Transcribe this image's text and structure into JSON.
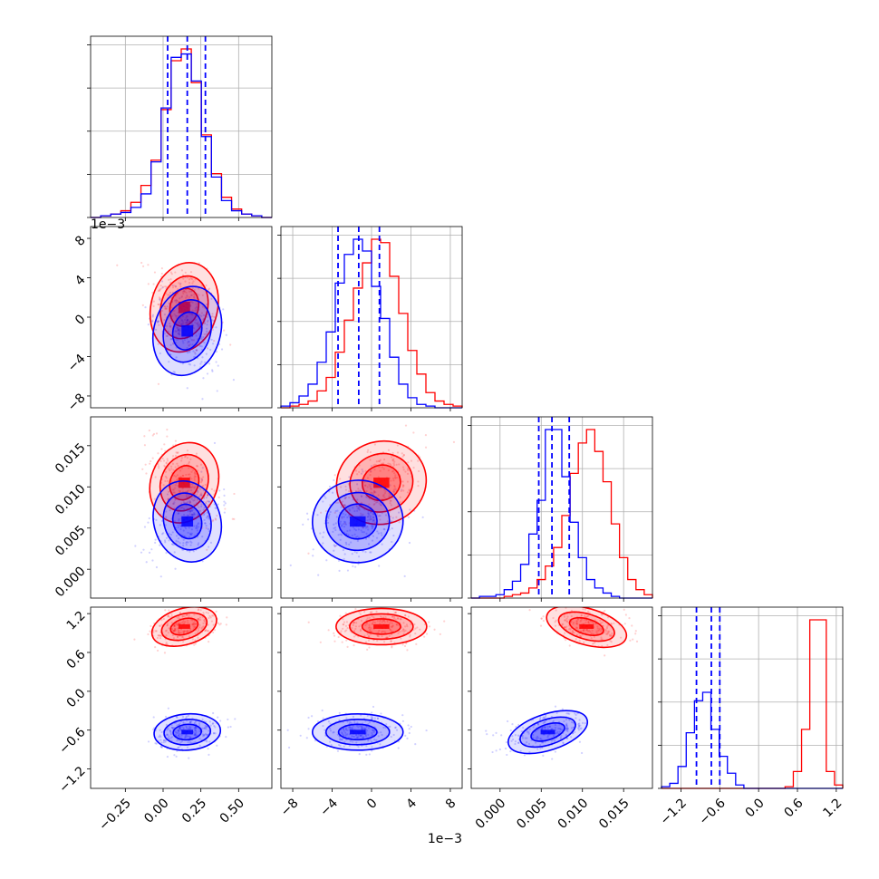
{
  "chart_data": {
    "type": "corner",
    "grid": true,
    "series": [
      {
        "name": "",
        "color": "#ff0000"
      },
      {
        "name": "",
        "color": "#0000ff"
      }
    ],
    "quantile_lines_color": "#0000ff",
    "parameters": [
      {
        "index": 0,
        "ticks": [
          "−0.25",
          "0.00",
          "0.25",
          "0.50"
        ],
        "tick_values": [
          -0.25,
          0.0,
          0.25,
          0.5
        ],
        "range": [
          -0.48,
          0.72
        ],
        "offset_text": "",
        "quantiles": [
          0.03,
          0.16,
          0.28
        ],
        "hist_red": [
          0.0,
          0.01,
          0.02,
          0.04,
          0.09,
          0.19,
          0.34,
          0.64,
          0.93,
          1.0,
          0.8,
          0.49,
          0.26,
          0.12,
          0.05,
          0.02,
          0.01,
          0.0
        ],
        "hist_blue": [
          0.0,
          0.01,
          0.02,
          0.03,
          0.06,
          0.14,
          0.33,
          0.65,
          0.95,
          0.97,
          0.81,
          0.48,
          0.24,
          0.1,
          0.04,
          0.02,
          0.01,
          0.0
        ]
      },
      {
        "index": 1,
        "ticks": [
          "−8",
          "−4",
          "0",
          "4",
          "8"
        ],
        "tick_values": [
          -8,
          -4,
          0,
          4,
          8
        ],
        "range": [
          -9.2,
          9.2
        ],
        "offset_text": "1e−3",
        "quantiles": [
          -3.4,
          -1.3,
          0.8
        ],
        "hist_red": [
          0.0,
          0.01,
          0.02,
          0.04,
          0.1,
          0.18,
          0.33,
          0.52,
          0.71,
          0.86,
          1.0,
          0.98,
          0.78,
          0.56,
          0.34,
          0.2,
          0.09,
          0.04,
          0.02,
          0.01
        ],
        "hist_blue": [
          0.01,
          0.03,
          0.07,
          0.14,
          0.27,
          0.45,
          0.74,
          0.91,
          1.0,
          0.93,
          0.72,
          0.53,
          0.3,
          0.14,
          0.06,
          0.02,
          0.01,
          0.0,
          0.0,
          0.0
        ]
      },
      {
        "index": 2,
        "ticks": [
          "0.000",
          "0.005",
          "0.010",
          "0.015"
        ],
        "tick_values": [
          0.0,
          0.005,
          0.01,
          0.015
        ],
        "range": [
          -0.0035,
          0.0185
        ],
        "offset_text": "",
        "quantiles": [
          0.0047,
          0.0063,
          0.0084
        ],
        "hist_red": [
          0.0,
          0.0,
          0.0,
          0.0,
          0.01,
          0.02,
          0.03,
          0.06,
          0.11,
          0.19,
          0.3,
          0.49,
          0.74,
          0.92,
          1.0,
          0.87,
          0.69,
          0.44,
          0.24,
          0.11,
          0.05,
          0.02
        ],
        "hist_blue": [
          0.0,
          0.01,
          0.01,
          0.02,
          0.05,
          0.1,
          0.2,
          0.38,
          0.58,
          1.0,
          1.0,
          0.72,
          0.45,
          0.24,
          0.11,
          0.06,
          0.03,
          0.01,
          0.0,
          0.0,
          0.0,
          0.0
        ]
      },
      {
        "index": 3,
        "ticks": [
          "−1.2",
          "−0.6",
          "0.0",
          "0.6",
          "1.2"
        ],
        "tick_values": [
          -1.2,
          -0.6,
          0.0,
          0.6,
          1.2
        ],
        "range": [
          -1.5,
          1.3
        ],
        "offset_text": "",
        "quantiles": [
          -0.96,
          -0.73,
          -0.6
        ],
        "hist_red": [
          0.0,
          0.0,
          0.0,
          0.0,
          0.0,
          0.0,
          0.0,
          0.0,
          0.0,
          0.0,
          0.0,
          0.0,
          0.0,
          0.0,
          0.0,
          0.01,
          0.1,
          0.35,
          1.0,
          1.0,
          0.1,
          0.02
        ],
        "hist_blue": [
          0.01,
          0.03,
          0.13,
          0.33,
          0.52,
          0.57,
          0.35,
          0.19,
          0.09,
          0.02,
          0.0,
          0.0,
          0.0,
          0.0,
          0.0,
          0.0,
          0.0,
          0.0,
          0.0,
          0.0,
          0.0,
          0.0
        ]
      }
    ],
    "top_hist_offset_text": "1e−3"
  }
}
